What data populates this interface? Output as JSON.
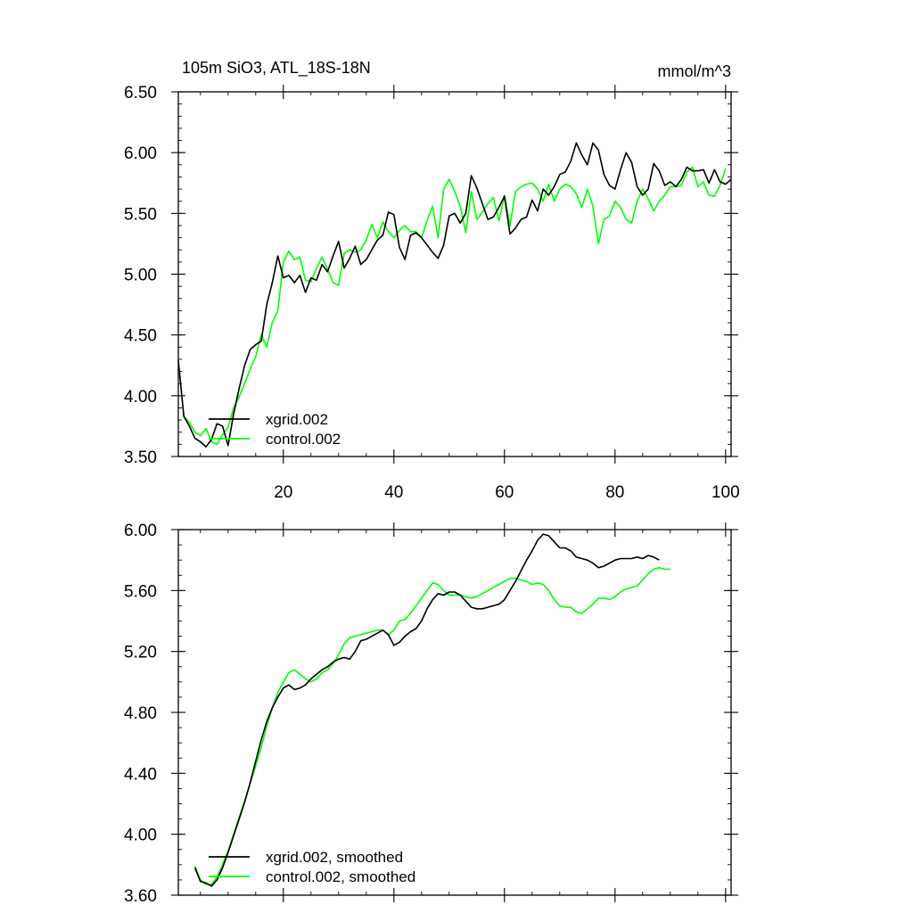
{
  "chart_data": [
    {
      "type": "line",
      "title": "105m SiO3, ATL_18S-18N",
      "units": "mmol/m^3",
      "xlabel": "",
      "ylabel": "",
      "xlim": [
        1,
        101
      ],
      "ylim": [
        3.5,
        6.5
      ],
      "x_ticks": [
        20,
        40,
        60,
        80,
        100
      ],
      "x_tick_labels": [
        "20",
        "40",
        "60",
        "80",
        "100"
      ],
      "y_ticks": [
        3.5,
        4.0,
        4.5,
        5.0,
        5.5,
        6.0,
        6.5
      ],
      "y_tick_labels": [
        "3.50",
        "4.00",
        "4.50",
        "5.00",
        "5.50",
        "6.00",
        "6.50"
      ],
      "legend_position": "bottom-left",
      "series": [
        {
          "name": "xgrid.002",
          "color": "#000000",
          "values": [
            4.29,
            3.83,
            3.75,
            3.65,
            3.62,
            3.58,
            3.64,
            3.77,
            3.75,
            3.59,
            3.85,
            4.06,
            4.25,
            4.38,
            4.42,
            4.45,
            4.75,
            4.93,
            5.15,
            4.97,
            4.99,
            4.93,
            4.99,
            4.85,
            4.97,
            4.95,
            5.08,
            5.02,
            5.15,
            5.27,
            5.05,
            5.13,
            5.23,
            5.08,
            5.12,
            5.2,
            5.28,
            5.32,
            5.51,
            5.49,
            5.22,
            5.12,
            5.32,
            5.34,
            5.3,
            5.24,
            5.18,
            5.13,
            5.24,
            5.48,
            5.5,
            5.42,
            5.5,
            5.81,
            5.71,
            5.58,
            5.45,
            5.47,
            5.55,
            5.64,
            5.33,
            5.38,
            5.45,
            5.47,
            5.61,
            5.52,
            5.7,
            5.65,
            5.72,
            5.82,
            5.84,
            5.93,
            6.08,
            5.98,
            5.9,
            6.08,
            6.02,
            5.82,
            5.73,
            5.7,
            5.86,
            6.0,
            5.92,
            5.72,
            5.65,
            5.7,
            5.91,
            5.85,
            5.73,
            5.76,
            5.72,
            5.78,
            5.88,
            5.85,
            5.85,
            5.86,
            5.75,
            5.86,
            5.76,
            5.74,
            5.78
          ]
        },
        {
          "name": "control.002",
          "color": "#00ff00",
          "values": [
            4.29,
            3.83,
            3.78,
            3.7,
            3.67,
            3.73,
            3.62,
            3.6,
            3.68,
            3.74,
            3.9,
            3.99,
            4.1,
            4.22,
            4.32,
            4.5,
            4.4,
            4.6,
            4.7,
            5.1,
            5.19,
            5.12,
            5.14,
            4.95,
            4.94,
            5.05,
            5.14,
            5.04,
            4.93,
            4.91,
            5.17,
            5.2,
            5.18,
            5.2,
            5.28,
            5.41,
            5.3,
            5.43,
            5.35,
            5.3,
            5.36,
            5.4,
            5.35,
            5.35,
            5.3,
            5.44,
            5.56,
            5.3,
            5.7,
            5.78,
            5.68,
            5.56,
            5.34,
            5.68,
            5.45,
            5.51,
            5.58,
            5.63,
            5.44,
            5.65,
            5.4,
            5.68,
            5.72,
            5.74,
            5.75,
            5.7,
            5.6,
            5.74,
            5.6,
            5.7,
            5.74,
            5.72,
            5.66,
            5.55,
            5.7,
            5.56,
            5.25,
            5.45,
            5.48,
            5.6,
            5.55,
            5.45,
            5.42,
            5.6,
            5.7,
            5.62,
            5.52,
            5.6,
            5.65,
            5.72,
            5.72,
            5.73,
            5.84,
            5.88,
            5.72,
            5.76,
            5.65,
            5.64,
            5.73,
            5.87
          ]
        }
      ],
      "legend": [
        "xgrid.002",
        "control.002"
      ]
    },
    {
      "type": "line",
      "title": "",
      "xlabel": "",
      "ylabel": "",
      "xlim": [
        1,
        101
      ],
      "ylim": [
        3.6,
        6.0
      ],
      "x_ticks": [
        20,
        40,
        60,
        80,
        100
      ],
      "x_tick_labels": [],
      "y_ticks": [
        3.6,
        4.0,
        4.4,
        4.8,
        5.2,
        5.6,
        6.0
      ],
      "y_tick_labels": [
        "3.60",
        "4.00",
        "4.40",
        "4.80",
        "5.20",
        "5.60",
        "6.00"
      ],
      "legend_position": "bottom-left",
      "series": [
        {
          "name": "xgrid.002, smoothed",
          "color": "#000000",
          "x_start": 4,
          "values": [
            3.78,
            3.69,
            3.68,
            3.66,
            3.7,
            3.78,
            3.88,
            3.99,
            4.1,
            4.21,
            4.34,
            4.48,
            4.62,
            4.74,
            4.83,
            4.9,
            4.96,
            4.98,
            4.95,
            4.96,
            4.98,
            5.02,
            5.05,
            5.08,
            5.1,
            5.13,
            5.15,
            5.16,
            5.15,
            5.2,
            5.27,
            5.28,
            5.3,
            5.32,
            5.34,
            5.31,
            5.24,
            5.26,
            5.3,
            5.33,
            5.35,
            5.4,
            5.48,
            5.54,
            5.58,
            5.57,
            5.59,
            5.59,
            5.57,
            5.53,
            5.49,
            5.48,
            5.48,
            5.49,
            5.5,
            5.51,
            5.54,
            5.6,
            5.66,
            5.73,
            5.8,
            5.86,
            5.93,
            5.97,
            5.96,
            5.92,
            5.88,
            5.88,
            5.86,
            5.82,
            5.81,
            5.8,
            5.78,
            5.75,
            5.76,
            5.78,
            5.8,
            5.81,
            5.81,
            5.81,
            5.82,
            5.81,
            5.83,
            5.82,
            5.8
          ]
        },
        {
          "name": "control.002, smoothed",
          "color": "#00ff00",
          "x_start": 4,
          "values": [
            3.79,
            3.7,
            3.67,
            3.67,
            3.72,
            3.8,
            3.89,
            4.0,
            4.11,
            4.22,
            4.33,
            4.45,
            4.57,
            4.71,
            4.83,
            4.93,
            5.0,
            5.06,
            5.08,
            5.05,
            5.02,
            5.0,
            5.02,
            5.06,
            5.08,
            5.12,
            5.18,
            5.25,
            5.29,
            5.3,
            5.31,
            5.32,
            5.33,
            5.34,
            5.34,
            5.31,
            5.34,
            5.4,
            5.41,
            5.45,
            5.5,
            5.55,
            5.6,
            5.65,
            5.64,
            5.6,
            5.57,
            5.57,
            5.57,
            5.56,
            5.55,
            5.56,
            5.58,
            5.6,
            5.62,
            5.64,
            5.66,
            5.68,
            5.68,
            5.67,
            5.66,
            5.64,
            5.65,
            5.64,
            5.6,
            5.54,
            5.5,
            5.49,
            5.49,
            5.46,
            5.45,
            5.48,
            5.51,
            5.55,
            5.55,
            5.54,
            5.56,
            5.59,
            5.61,
            5.62,
            5.63,
            5.67,
            5.71,
            5.74,
            5.75,
            5.74,
            5.74
          ]
        }
      ],
      "legend": [
        "xgrid.002, smoothed",
        "control.002, smoothed"
      ]
    }
  ]
}
